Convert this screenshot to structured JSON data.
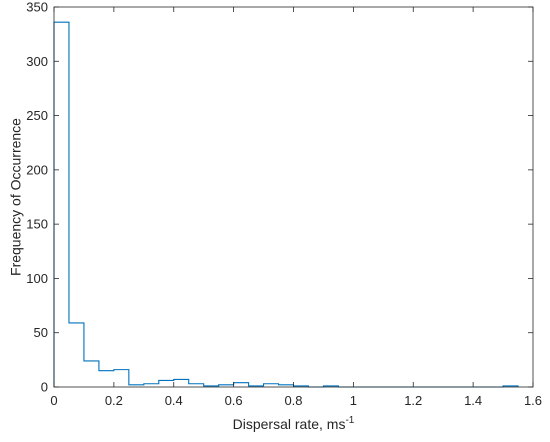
{
  "chart_data": {
    "type": "bar",
    "subtype": "histogram-stairs",
    "title": "",
    "xlabel": "Dispersal rate, ms",
    "xlabel_superscript": "-1",
    "ylabel": "Frequency of Occurrence",
    "xlim": [
      0,
      1.6
    ],
    "ylim": [
      0,
      350
    ],
    "xticks": [
      0,
      0.2,
      0.4,
      0.6,
      0.8,
      1,
      1.2,
      1.4,
      1.6
    ],
    "xtick_labels": [
      "0",
      "0.2",
      "0.4",
      "0.6",
      "0.8",
      "1",
      "1.2",
      "1.4",
      "1.6"
    ],
    "yticks": [
      0,
      50,
      100,
      150,
      200,
      250,
      300,
      350
    ],
    "ytick_labels": [
      "0",
      "50",
      "100",
      "150",
      "200",
      "250",
      "300",
      "350"
    ],
    "bin_width": 0.05,
    "bin_edges": [
      0,
      0.05,
      0.1,
      0.15,
      0.2,
      0.25,
      0.3,
      0.35,
      0.4,
      0.45,
      0.5,
      0.55,
      0.6,
      0.65,
      0.7,
      0.75,
      0.8,
      0.85,
      0.9,
      0.95,
      1.0,
      1.05,
      1.1,
      1.15,
      1.2,
      1.25,
      1.3,
      1.35,
      1.4,
      1.45,
      1.5,
      1.55
    ],
    "values": [
      336,
      59,
      24,
      15,
      16,
      2,
      3,
      6,
      7,
      3,
      1,
      2,
      4,
      1,
      3,
      2,
      1,
      0,
      1,
      0,
      0,
      0,
      0,
      0,
      0,
      0,
      0,
      0,
      0,
      0,
      1
    ],
    "grid": false,
    "legend": "none",
    "colors": {
      "series": "#0072BD",
      "axis": "#262626",
      "background": "#ffffff"
    }
  }
}
